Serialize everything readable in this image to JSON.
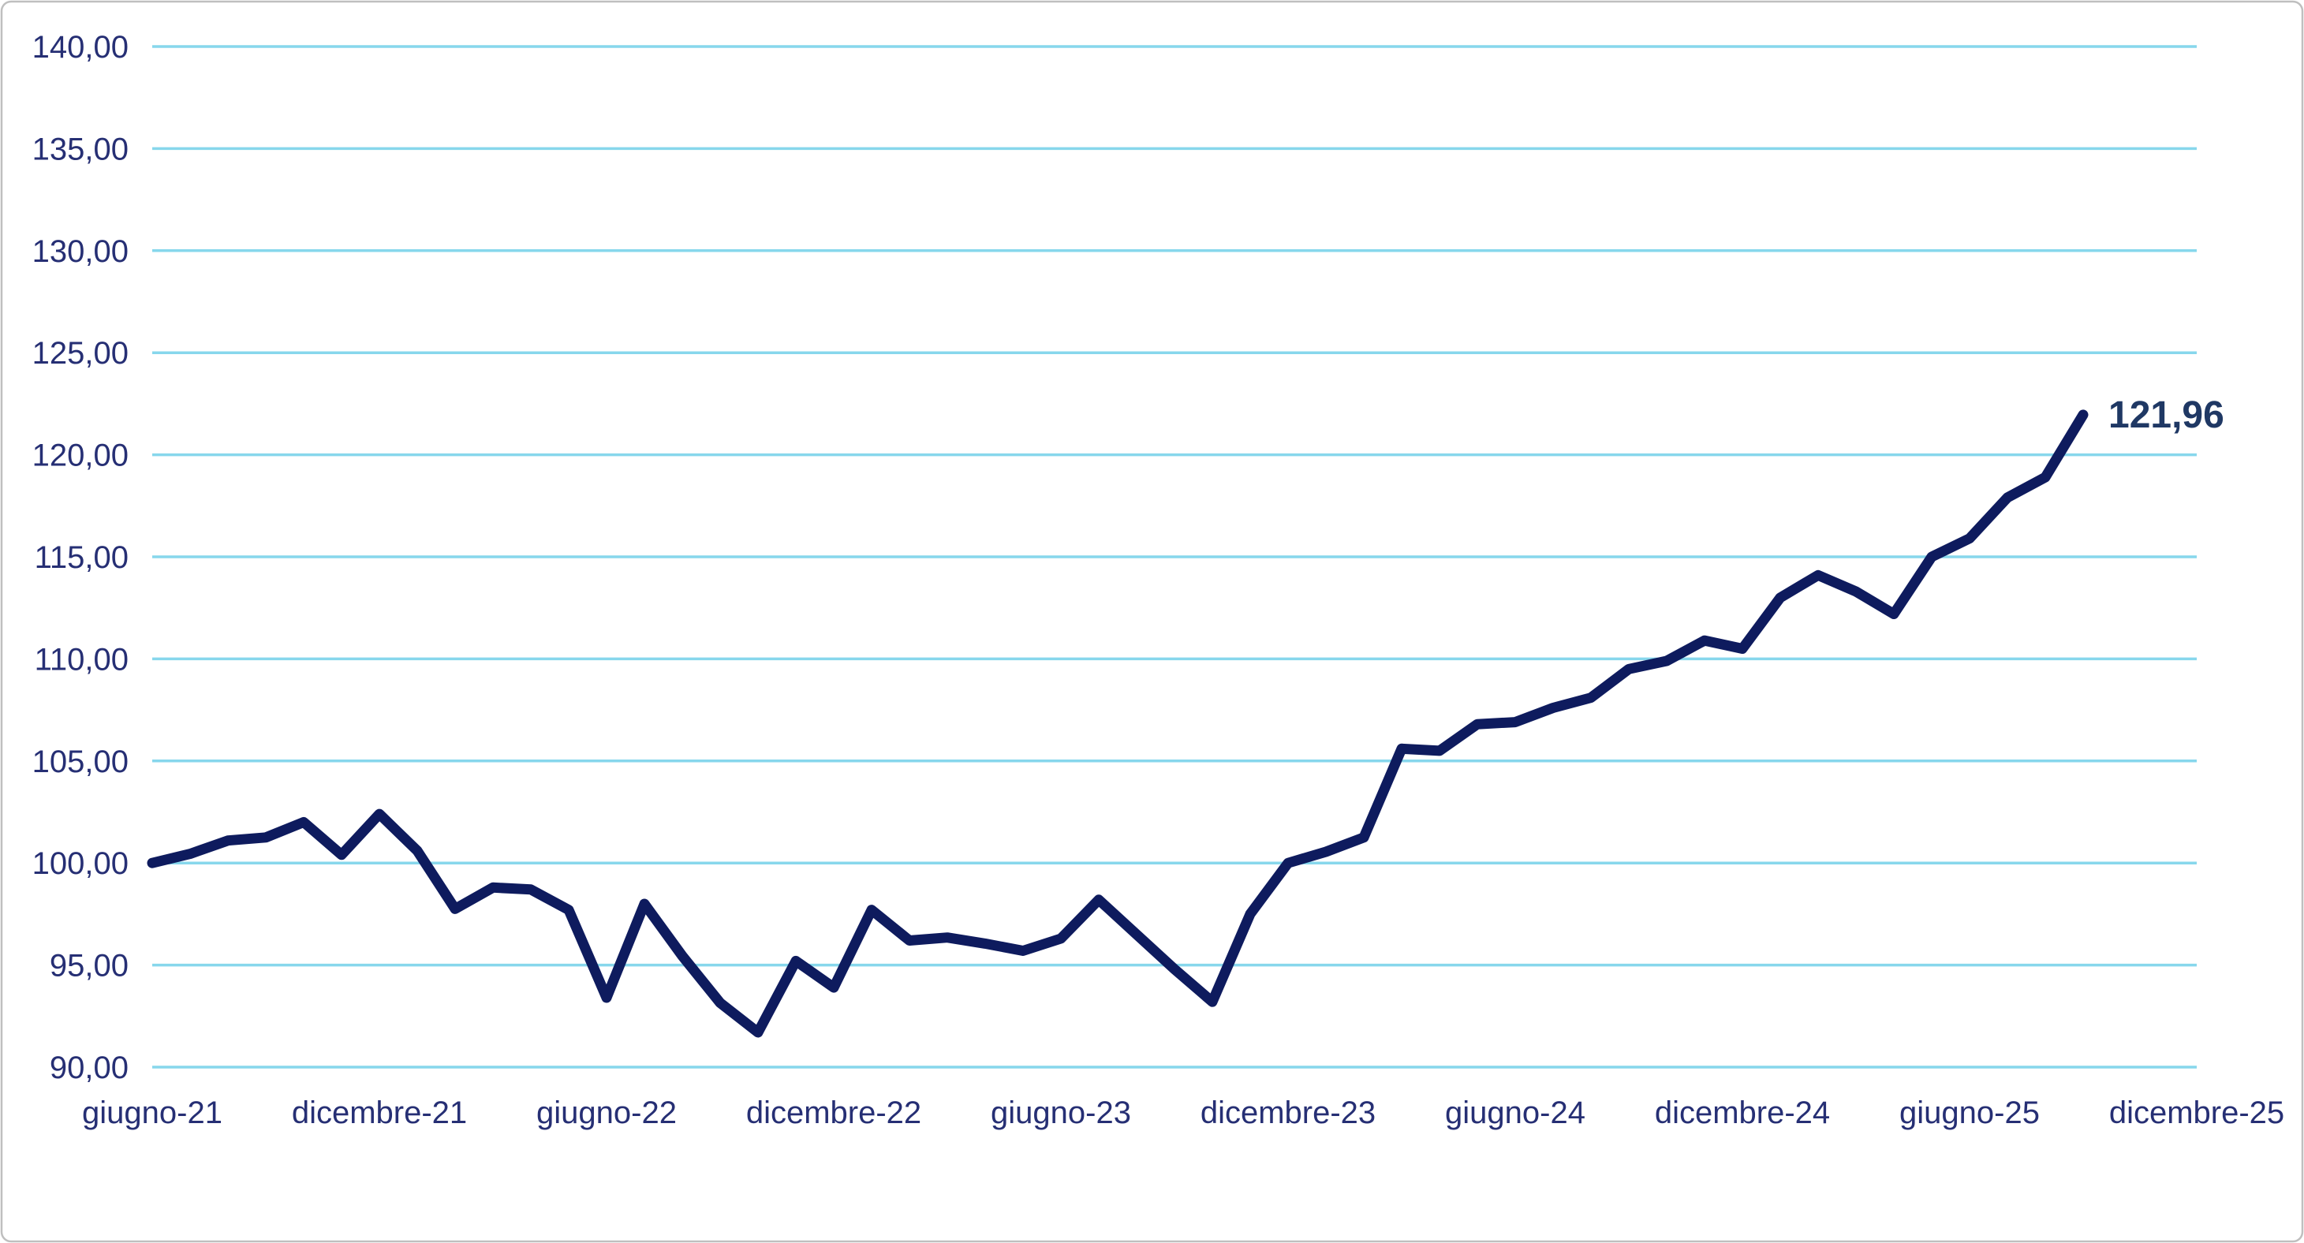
{
  "window": {
    "background_color": "#FFFFFF",
    "border_color": "#BFBFBF"
  },
  "chart_data": {
    "type": "line",
    "title": "",
    "xlabel": "",
    "ylabel": "",
    "grid": "horizontal",
    "legend": "none",
    "decimal_format": "it-IT",
    "gridline_color": "#87D7EC",
    "axis_label_color": "#262F74",
    "ylim": [
      90,
      140
    ],
    "y_tick_step": 5,
    "y_ticks": [
      {
        "value": 140,
        "label": "140,00"
      },
      {
        "value": 135,
        "label": "135,00"
      },
      {
        "value": 130,
        "label": "130,00"
      },
      {
        "value": 125,
        "label": "125,00"
      },
      {
        "value": 120,
        "label": "120,00"
      },
      {
        "value": 115,
        "label": "115,00"
      },
      {
        "value": 110,
        "label": "110,00"
      },
      {
        "value": 105,
        "label": "105,00"
      },
      {
        "value": 100,
        "label": "100,00"
      },
      {
        "value": 95,
        "label": "95,00"
      },
      {
        "value": 90,
        "label": "90,00"
      }
    ],
    "x_tick_labels": [
      "giugno-21",
      "dicembre-21",
      "giugno-22",
      "dicembre-22",
      "giugno-23",
      "dicembre-23",
      "giugno-24",
      "dicembre-24",
      "giugno-25",
      "dicembre-25"
    ],
    "x_tick_month_interval": 6,
    "x_frequency": "monthly",
    "months": [
      "giu-21",
      "lug-21",
      "ago-21",
      "set-21",
      "ott-21",
      "nov-21",
      "dic-21",
      "gen-22",
      "feb-22",
      "mar-22",
      "apr-22",
      "mag-22",
      "giu-22",
      "lug-22",
      "ago-22",
      "set-22",
      "ott-22",
      "nov-22",
      "dic-22",
      "gen-23",
      "feb-23",
      "mar-23",
      "apr-23",
      "mag-23",
      "giu-23",
      "lug-23",
      "ago-23",
      "set-23",
      "ott-23",
      "nov-23",
      "dic-23",
      "gen-24",
      "feb-24",
      "mar-24",
      "apr-24",
      "mag-24",
      "giu-24",
      "lug-24",
      "ago-24",
      "set-24",
      "ott-24",
      "nov-24",
      "dic-24",
      "gen-25",
      "feb-25",
      "mar-25",
      "apr-25",
      "mag-25",
      "giu-25",
      "lug-25",
      "ago-25",
      "set-25"
    ],
    "series": [
      {
        "name": "indice",
        "color": "#0E1B5E",
        "line_width": 13,
        "values": [
          100.0,
          100.45,
          101.1,
          101.25,
          102.0,
          100.4,
          102.4,
          100.6,
          97.75,
          98.8,
          98.7,
          97.7,
          93.4,
          98.0,
          95.45,
          93.15,
          91.7,
          95.2,
          93.9,
          97.7,
          96.2,
          96.35,
          96.05,
          95.7,
          96.3,
          98.2,
          96.5,
          94.8,
          93.2,
          97.5,
          100.0,
          100.55,
          101.25,
          105.6,
          105.5,
          106.8,
          106.9,
          107.6,
          108.1,
          109.5,
          109.9,
          110.9,
          110.5,
          113.0,
          114.1,
          113.3,
          112.2,
          115.0,
          115.9,
          117.9,
          118.9,
          121.96
        ]
      }
    ],
    "last_value_label": "121,96",
    "last_value_color": "#1F3864"
  }
}
